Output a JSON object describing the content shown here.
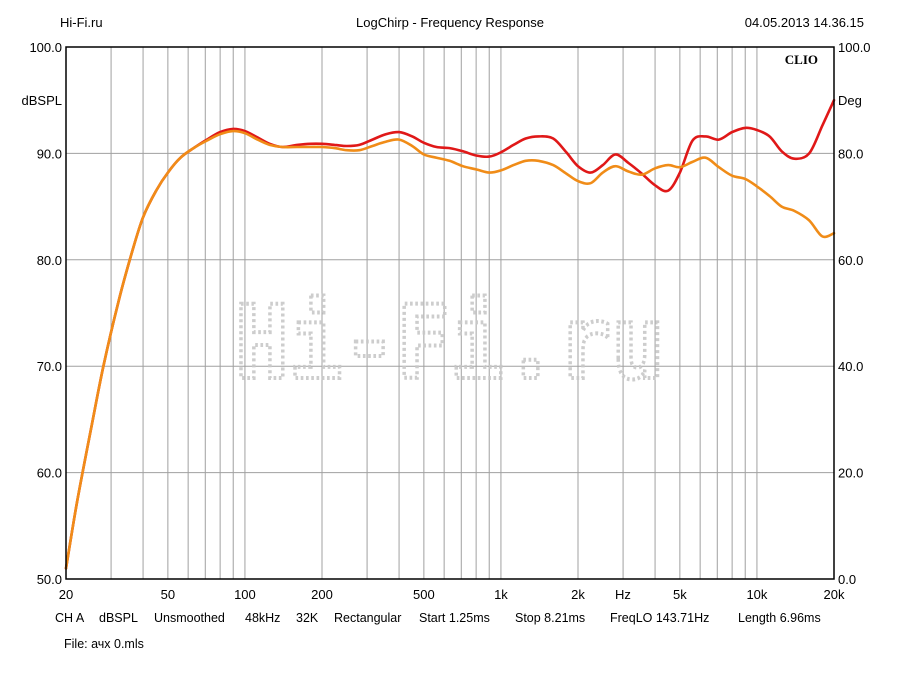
{
  "header": {
    "left": "Hi-Fi.ru",
    "center": "LogChirp - Frequency Response",
    "right": "04.05.2013 14.36.15"
  },
  "footer": {
    "settings": [
      "CH A",
      "dBSPL",
      "Unsmoothed",
      "48kHz",
      "32K",
      "Rectangular",
      "Start 1.25ms",
      "Stop 8.21ms",
      "FreqLO 143.71Hz",
      "Length 6.96ms"
    ],
    "file": "File: ачх 0.mls"
  },
  "watermark": "Hi-Fi.ru",
  "chart_data": {
    "type": "line",
    "title": "LogChirp - Frequency Response",
    "brand_label": "CLIO",
    "xscale": "log",
    "xlim": [
      20,
      20000
    ],
    "ylim_left": [
      50,
      100
    ],
    "ylim_right": [
      0,
      100
    ],
    "ylabel_left": "dBSPL",
    "ylabel_right": "Deg",
    "x_unit_label": "Hz",
    "x_ticks": [
      {
        "value": 20,
        "label": "20"
      },
      {
        "value": 50,
        "label": "50"
      },
      {
        "value": 100,
        "label": "100"
      },
      {
        "value": 200,
        "label": "200"
      },
      {
        "value": 500,
        "label": "500"
      },
      {
        "value": 1000,
        "label": "1k"
      },
      {
        "value": 2000,
        "label": "2k"
      },
      {
        "value": 5000,
        "label": "5k"
      },
      {
        "value": 10000,
        "label": "10k"
      },
      {
        "value": 20000,
        "label": "20k"
      }
    ],
    "y_ticks_left": [
      "50.0",
      "60.0",
      "70.0",
      "80.0",
      "90.0",
      "100.0"
    ],
    "y_ticks_right": [
      "0.0",
      "20.0",
      "40.0",
      "60.0",
      "80.0",
      "100.0"
    ],
    "grid": true,
    "colors": {
      "series_red": "#e01818",
      "series_orange": "#f08c18",
      "grid": "#a0a0a0",
      "watermark": "#c8c8c8"
    },
    "series": [
      {
        "color": "#e01818",
        "x": [
          20,
          22,
          25,
          28,
          32,
          36,
          40,
          45,
          50,
          56,
          63,
          71,
          80,
          90,
          100,
          112,
          125,
          140,
          160,
          180,
          200,
          224,
          250,
          280,
          315,
          355,
          400,
          450,
          500,
          560,
          630,
          710,
          800,
          900,
          1000,
          1120,
          1250,
          1400,
          1600,
          1800,
          2000,
          2240,
          2500,
          2800,
          3150,
          3550,
          4000,
          4500,
          5000,
          5600,
          6300,
          7100,
          8000,
          9000,
          10000,
          11200,
          12500,
          14000,
          16000,
          18000,
          20000
        ],
        "y": [
          51.0,
          57.0,
          64.0,
          70.0,
          76.0,
          80.5,
          84.0,
          86.5,
          88.2,
          89.6,
          90.5,
          91.3,
          92.0,
          92.3,
          92.1,
          91.5,
          90.9,
          90.6,
          90.8,
          90.9,
          90.9,
          90.8,
          90.7,
          90.8,
          91.3,
          91.8,
          92.0,
          91.6,
          91.0,
          90.6,
          90.5,
          90.2,
          89.8,
          89.7,
          90.1,
          90.8,
          91.4,
          91.6,
          91.4,
          90.1,
          88.8,
          88.2,
          88.9,
          89.9,
          89.1,
          88.1,
          87.0,
          86.5,
          88.2,
          91.2,
          91.6,
          91.3,
          92.0,
          92.4,
          92.2,
          91.6,
          90.2,
          89.5,
          90.0,
          92.6,
          95.0
        ]
      },
      {
        "color": "#f08c18",
        "x": [
          20,
          22,
          25,
          28,
          32,
          36,
          40,
          45,
          50,
          56,
          63,
          71,
          80,
          90,
          100,
          112,
          125,
          140,
          160,
          180,
          200,
          224,
          250,
          280,
          315,
          355,
          400,
          450,
          500,
          560,
          630,
          710,
          800,
          900,
          1000,
          1120,
          1250,
          1400,
          1600,
          1800,
          2000,
          2240,
          2500,
          2800,
          3150,
          3550,
          4000,
          4500,
          5000,
          5600,
          6300,
          7100,
          8000,
          9000,
          10000,
          11200,
          12500,
          14000,
          16000,
          18000,
          20000
        ],
        "y": [
          51.0,
          57.0,
          64.0,
          70.0,
          76.0,
          80.5,
          84.0,
          86.5,
          88.2,
          89.6,
          90.5,
          91.2,
          91.8,
          92.1,
          91.9,
          91.3,
          90.8,
          90.6,
          90.6,
          90.6,
          90.6,
          90.5,
          90.3,
          90.3,
          90.7,
          91.1,
          91.3,
          90.7,
          89.9,
          89.6,
          89.3,
          88.8,
          88.5,
          88.2,
          88.4,
          88.9,
          89.3,
          89.3,
          88.9,
          88.1,
          87.4,
          87.2,
          88.2,
          88.8,
          88.3,
          88.0,
          88.6,
          88.9,
          88.7,
          89.2,
          89.6,
          88.7,
          87.9,
          87.6,
          86.9,
          86.0,
          85.0,
          84.6,
          83.7,
          82.2,
          82.5
        ]
      }
    ]
  }
}
